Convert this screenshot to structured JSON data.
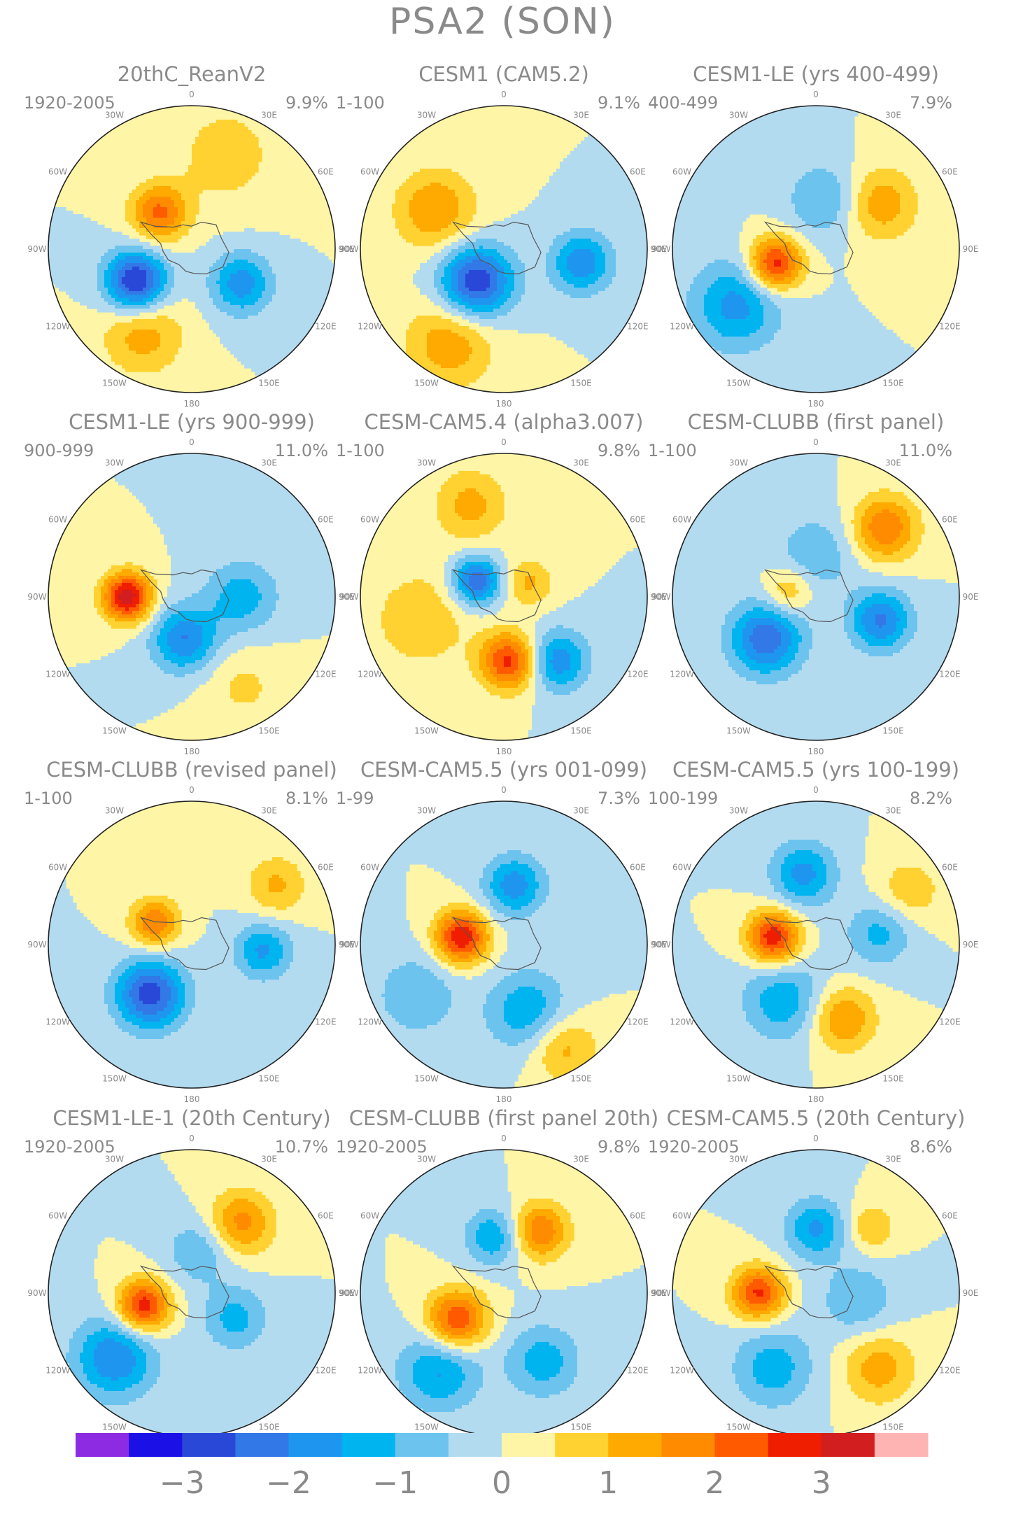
{
  "figure": {
    "title": "PSA2 (SON)"
  },
  "longitude_labels": [
    "0",
    "30E",
    "60E",
    "90E",
    "120E",
    "150E",
    "180",
    "150W",
    "120W",
    "90W",
    "60W",
    "30W"
  ],
  "chart_data": {
    "type": "polar-contour-map",
    "projection": "south polar stereographic",
    "grid_columns": 3,
    "grid_rows": 4,
    "panels": [
      {
        "title": "20thC_ReanV2",
        "period": "1920-2005",
        "variance": "9.9%",
        "anomalies": [
          {
            "lon": -42,
            "r": 0.34,
            "value": 2.1,
            "s": 0.14
          },
          {
            "lon": -120,
            "r": 0.45,
            "value": -3.2,
            "s": 0.15
          },
          {
            "lon": -150,
            "r": 0.68,
            "value": 1.3,
            "s": 0.2
          },
          {
            "lon": 125,
            "r": 0.42,
            "value": -1.8,
            "s": 0.15
          },
          {
            "lon": 20,
            "r": 0.7,
            "value": 0.8,
            "s": 0.25
          }
        ]
      },
      {
        "title": "CESM1 (CAM5.2)",
        "period": "1-100",
        "variance": "9.1%",
        "anomalies": [
          {
            "lon": -140,
            "r": 0.3,
            "value": -3.0,
            "s": 0.18
          },
          {
            "lon": -60,
            "r": 0.55,
            "value": 1.5,
            "s": 0.2
          },
          {
            "lon": 100,
            "r": 0.55,
            "value": -1.9,
            "s": 0.15
          },
          {
            "lon": -150,
            "r": 0.75,
            "value": 1.4,
            "s": 0.22
          }
        ]
      },
      {
        "title": "CESM1-LE (yrs 400-499)",
        "period": "400-499",
        "variance": "7.9%",
        "anomalies": [
          {
            "lon": -110,
            "r": 0.3,
            "value": 2.9,
            "s": 0.13
          },
          {
            "lon": 55,
            "r": 0.55,
            "value": 1.4,
            "s": 0.18
          },
          {
            "lon": -125,
            "r": 0.68,
            "value": -1.7,
            "s": 0.22
          },
          {
            "lon": 10,
            "r": 0.35,
            "value": -1.1,
            "s": 0.18
          }
        ]
      },
      {
        "title": "CESM1-LE (yrs 900-999)",
        "period": "900-999",
        "variance": "11.0%",
        "anomalies": [
          {
            "lon": -90,
            "r": 0.45,
            "value": 3.3,
            "s": 0.12
          },
          {
            "lon": -170,
            "r": 0.3,
            "value": -2.0,
            "s": 0.16
          },
          {
            "lon": 90,
            "r": 0.35,
            "value": -1.3,
            "s": 0.18
          },
          {
            "lon": 150,
            "r": 0.72,
            "value": 0.6,
            "s": 0.2
          }
        ]
      },
      {
        "title": "CESM-CAM5.4 (alpha3.007)",
        "period": "1-100",
        "variance": "9.8%",
        "anomalies": [
          {
            "lon": -60,
            "r": 0.22,
            "value": -2.5,
            "s": 0.12
          },
          {
            "lon": 175,
            "r": 0.45,
            "value": 2.7,
            "s": 0.14
          },
          {
            "lon": 140,
            "r": 0.58,
            "value": -1.9,
            "s": 0.15
          },
          {
            "lon": -20,
            "r": 0.68,
            "value": 1.2,
            "s": 0.18
          },
          {
            "lon": 60,
            "r": 0.2,
            "value": 1.1,
            "s": 0.12
          },
          {
            "lon": -105,
            "r": 0.6,
            "value": 0.9,
            "s": 0.25
          }
        ]
      },
      {
        "title": "CESM-CLUBB (first panel)",
        "period": "1-100",
        "variance": "11.0%",
        "anomalies": [
          {
            "lon": -130,
            "r": 0.45,
            "value": -2.4,
            "s": 0.18
          },
          {
            "lon": 110,
            "r": 0.48,
            "value": -2.1,
            "s": 0.15
          },
          {
            "lon": 45,
            "r": 0.68,
            "value": 2.0,
            "s": 0.16
          },
          {
            "lon": -80,
            "r": 0.2,
            "value": 1.2,
            "s": 0.12
          },
          {
            "lon": 0,
            "r": 0.3,
            "value": -0.9,
            "s": 0.2
          }
        ]
      },
      {
        "title": "CESM-CLUBB (revised panel)",
        "period": "1-100",
        "variance": "8.1%",
        "anomalies": [
          {
            "lon": -140,
            "r": 0.45,
            "value": -2.8,
            "s": 0.17
          },
          {
            "lon": -60,
            "r": 0.3,
            "value": 2.0,
            "s": 0.12
          },
          {
            "lon": 95,
            "r": 0.5,
            "value": -1.6,
            "s": 0.14
          },
          {
            "lon": 55,
            "r": 0.72,
            "value": 1.1,
            "s": 0.15
          }
        ]
      },
      {
        "title": "CESM-CAM5.5 (yrs 001-099)",
        "period": "1-99",
        "variance": "7.3%",
        "anomalies": [
          {
            "lon": -80,
            "r": 0.3,
            "value": 3.0,
            "s": 0.13
          },
          {
            "lon": 10,
            "r": 0.42,
            "value": -1.8,
            "s": 0.15
          },
          {
            "lon": 160,
            "r": 0.5,
            "value": -1.5,
            "s": 0.2
          },
          {
            "lon": 150,
            "r": 0.82,
            "value": 1.3,
            "s": 0.17
          },
          {
            "lon": -120,
            "r": 0.7,
            "value": -1.0,
            "s": 0.2
          }
        ]
      },
      {
        "title": "CESM-CAM5.5 (yrs 100-199)",
        "period": "100-199",
        "variance": "8.2%",
        "anomalies": [
          {
            "lon": -80,
            "r": 0.3,
            "value": 2.9,
            "s": 0.13
          },
          {
            "lon": -10,
            "r": 0.5,
            "value": -1.7,
            "s": 0.16
          },
          {
            "lon": 160,
            "r": 0.55,
            "value": 1.6,
            "s": 0.16
          },
          {
            "lon": -150,
            "r": 0.45,
            "value": -1.4,
            "s": 0.2
          },
          {
            "lon": 80,
            "r": 0.45,
            "value": -1.2,
            "s": 0.16
          },
          {
            "lon": 60,
            "r": 0.75,
            "value": 0.9,
            "s": 0.16
          }
        ]
      },
      {
        "title": "CESM1-LE-1 (20th Century)",
        "period": "1920-2005",
        "variance": "10.7%",
        "anomalies": [
          {
            "lon": -105,
            "r": 0.35,
            "value": 2.9,
            "s": 0.13
          },
          {
            "lon": 35,
            "r": 0.6,
            "value": 1.7,
            "s": 0.16
          },
          {
            "lon": -130,
            "r": 0.7,
            "value": -2.0,
            "s": 0.2
          },
          {
            "lon": 10,
            "r": 0.3,
            "value": -1.0,
            "s": 0.16
          },
          {
            "lon": 120,
            "r": 0.35,
            "value": -1.2,
            "s": 0.16
          }
        ]
      },
      {
        "title": "CESM-CLUBB (first panel 20th)",
        "period": "1920-2005",
        "variance": "9.8%",
        "anomalies": [
          {
            "lon": -120,
            "r": 0.38,
            "value": 2.6,
            "s": 0.15
          },
          {
            "lon": 30,
            "r": 0.5,
            "value": 2.0,
            "s": 0.14
          },
          {
            "lon": -10,
            "r": 0.4,
            "value": -1.5,
            "s": 0.14
          },
          {
            "lon": -140,
            "r": 0.7,
            "value": -1.6,
            "s": 0.2
          },
          {
            "lon": 150,
            "r": 0.55,
            "value": -1.3,
            "s": 0.18
          }
        ]
      },
      {
        "title": "CESM-CAM5.5 (20th Century)",
        "period": "1920-2005",
        "variance": "8.6%",
        "anomalies": [
          {
            "lon": -90,
            "r": 0.4,
            "value": 2.6,
            "s": 0.13
          },
          {
            "lon": 0,
            "r": 0.45,
            "value": -1.6,
            "s": 0.15
          },
          {
            "lon": 40,
            "r": 0.6,
            "value": 1.0,
            "s": 0.12
          },
          {
            "lon": 140,
            "r": 0.68,
            "value": 1.3,
            "s": 0.18
          },
          {
            "lon": 100,
            "r": 0.3,
            "value": -1.0,
            "s": 0.18
          },
          {
            "lon": -150,
            "r": 0.6,
            "value": -1.3,
            "s": 0.2
          }
        ]
      }
    ],
    "colorbar": {
      "ticks": [
        "−3",
        "−2",
        "−1",
        "0",
        "1",
        "2",
        "3"
      ],
      "tick_values": [
        -3,
        -2,
        -1,
        0,
        1,
        2,
        3
      ],
      "levels": [
        -3.5,
        -3,
        -2.5,
        -2,
        -1.5,
        -1,
        -0.5,
        0,
        0.5,
        1,
        1.5,
        2,
        2.5,
        3,
        3.5
      ],
      "colors": [
        "#8c2be2",
        "#1b10e6",
        "#2a48d8",
        "#3278e6",
        "#1e96f0",
        "#00b4f0",
        "#6cc4ee",
        "#b3dbf0",
        "#fff5a6",
        "#ffd232",
        "#ffaa00",
        "#ff8c00",
        "#ff5a00",
        "#f01e00",
        "#d21e1e",
        "#ffb4b4"
      ]
    }
  }
}
